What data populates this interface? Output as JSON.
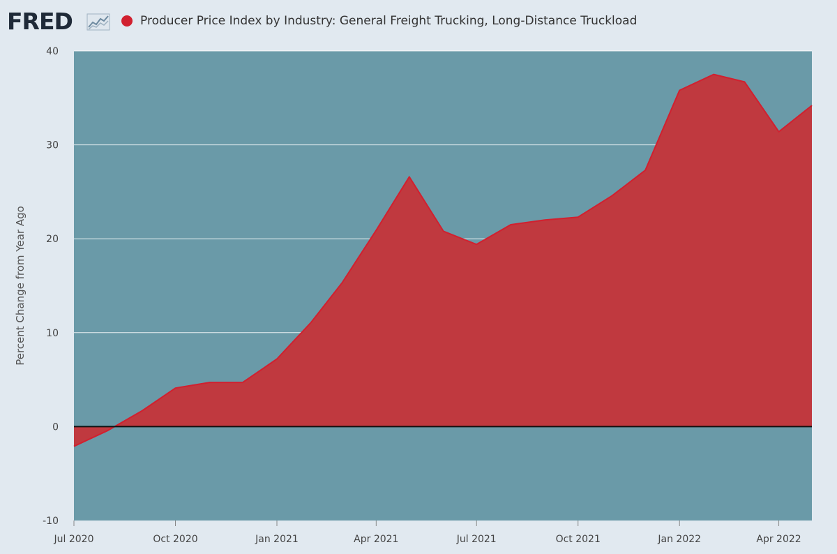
{
  "header": {
    "logo_text": "FRED",
    "logo_icon": "line-chart-icon"
  },
  "colors": {
    "plot_background": "#6a9aa8",
    "area_fill": "#c0393f",
    "line": "#d1202f",
    "page_background": "#e1e9f0"
  },
  "chart_data": {
    "type": "area",
    "title": "Producer Price Index by Industry: General Freight Trucking, Long-Distance Truckload",
    "ylabel": "Percent Change from Year Ago",
    "xlabel": "",
    "ylim": [
      -10,
      40
    ],
    "xlim": [
      "2020-07-01",
      "2022-05-01"
    ],
    "y_ticks": [
      -10,
      0,
      10,
      20,
      30,
      40
    ],
    "x_tick_labels": [
      "Jul 2020",
      "Oct 2020",
      "Jan 2021",
      "Apr 2021",
      "Jul 2021",
      "Oct 2021",
      "Jan 2022",
      "Apr 2022"
    ],
    "x_tick_dates": [
      "2020-07-01",
      "2020-10-01",
      "2021-01-01",
      "2021-04-01",
      "2021-07-01",
      "2021-10-01",
      "2022-01-01",
      "2022-04-01"
    ],
    "grid": true,
    "legend": "top-left",
    "series": [
      {
        "name": "Producer Price Index by Industry: General Freight Trucking, Long-Distance Truckload",
        "x": [
          "2020-07-01",
          "2020-08-01",
          "2020-09-01",
          "2020-10-01",
          "2020-11-01",
          "2020-12-01",
          "2021-01-01",
          "2021-02-01",
          "2021-03-01",
          "2021-04-01",
          "2021-05-01",
          "2021-06-01",
          "2021-07-01",
          "2021-08-01",
          "2021-09-01",
          "2021-10-01",
          "2021-11-01",
          "2021-12-01",
          "2022-01-01",
          "2022-02-01",
          "2022-03-01",
          "2022-04-01",
          "2022-05-01"
        ],
        "values": [
          -2.1,
          -0.4,
          1.7,
          4.1,
          4.7,
          4.7,
          7.2,
          11.1,
          15.3,
          20.9,
          26.6,
          20.8,
          19.4,
          21.5,
          22.0,
          22.3,
          24.6,
          27.3,
          35.8,
          37.5,
          36.7,
          31.4,
          34.2
        ]
      }
    ]
  }
}
